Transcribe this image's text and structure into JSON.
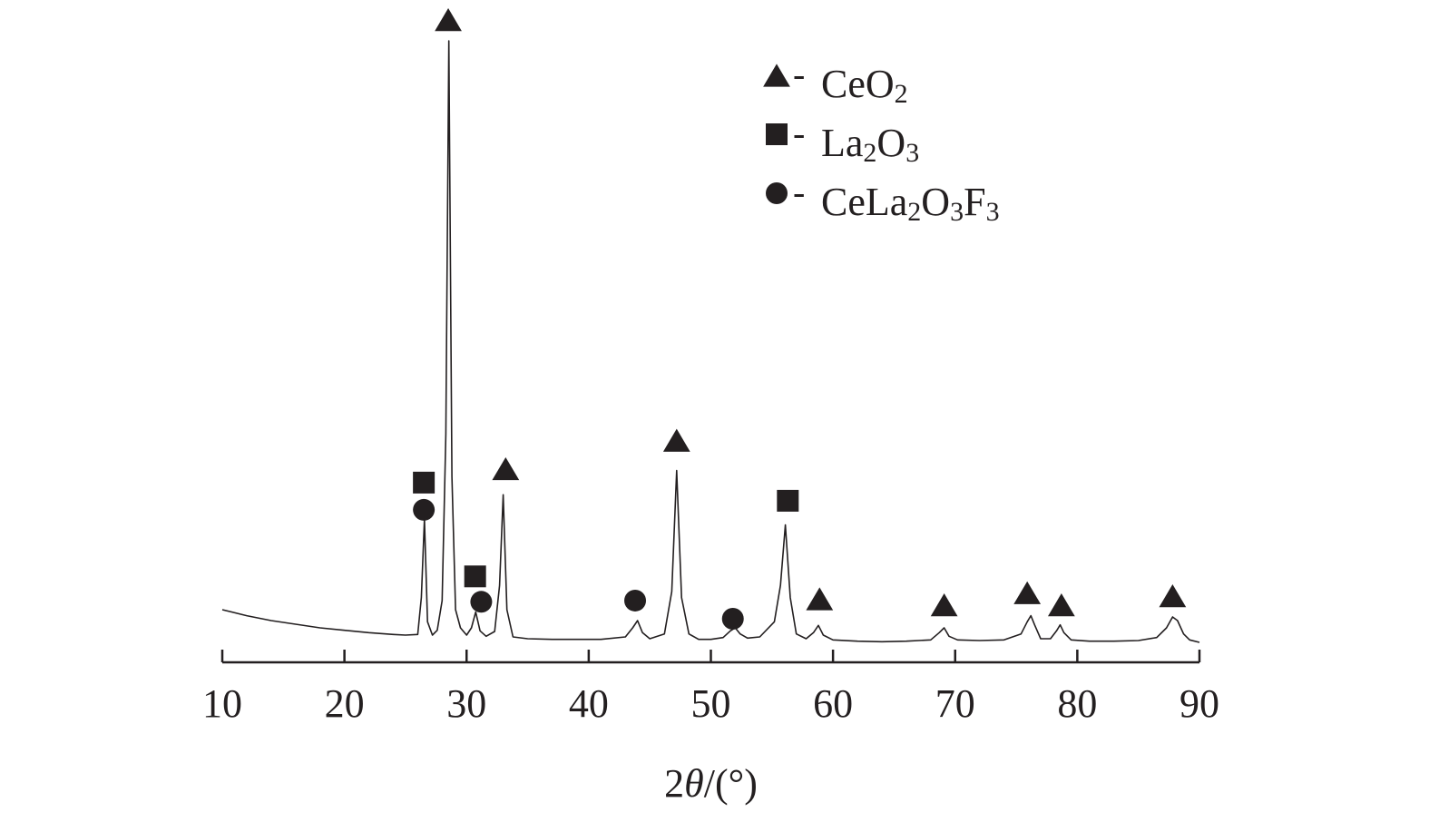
{
  "chart_data": {
    "type": "line",
    "xlabel_parts": [
      {
        "text": "2",
        "italic": false
      },
      {
        "text": "θ",
        "italic": true
      },
      {
        "text": "/(°)",
        "italic": false
      }
    ],
    "xlim": [
      10,
      90
    ],
    "xticks": [
      10,
      20,
      30,
      40,
      50,
      60,
      70,
      80,
      90
    ],
    "xtick_labels": [
      "10",
      "20",
      "30",
      "40",
      "50",
      "60",
      "70",
      "80",
      "90"
    ],
    "y_axis_shown": false,
    "ylim": [
      0,
      100
    ],
    "grid": false,
    "legend_position": "top-right",
    "series": [
      {
        "color": "#231f20",
        "x": [
          10.0,
          12.0,
          14.0,
          16.0,
          18.0,
          20.0,
          22.0,
          24.0,
          25.0,
          26.0,
          26.3,
          26.55,
          26.8,
          27.2,
          27.6,
          28.0,
          28.3,
          28.55,
          28.8,
          29.1,
          29.5,
          30.0,
          30.4,
          30.75,
          31.1,
          31.6,
          32.3,
          32.7,
          33.0,
          33.3,
          33.8,
          35.0,
          37.0,
          39.0,
          41.0,
          43.0,
          43.6,
          44.0,
          44.4,
          45.0,
          46.2,
          46.8,
          47.2,
          47.6,
          48.2,
          49.0,
          50.0,
          51.0,
          51.6,
          52.0,
          52.4,
          53.0,
          54.0,
          55.2,
          55.7,
          56.1,
          56.5,
          57.0,
          57.8,
          58.4,
          58.8,
          59.2,
          60.0,
          62.0,
          64.0,
          66.0,
          68.0,
          68.7,
          69.1,
          69.5,
          70.2,
          72.0,
          74.0,
          75.4,
          75.9,
          76.2,
          76.5,
          77.0,
          77.8,
          78.3,
          78.6,
          78.9,
          79.5,
          81.0,
          83.0,
          85.0,
          86.5,
          87.3,
          87.8,
          88.2,
          88.7,
          89.2,
          90.0
        ],
        "y": [
          6.0,
          5.0,
          4.2,
          3.6,
          3.0,
          2.6,
          2.2,
          1.9,
          1.8,
          1.9,
          8.0,
          21.0,
          4.0,
          1.8,
          2.6,
          7.5,
          35.0,
          100.0,
          28.0,
          6.0,
          3.0,
          1.8,
          3.0,
          5.6,
          2.5,
          1.6,
          2.4,
          10.0,
          25.0,
          6.0,
          1.5,
          1.2,
          1.1,
          1.1,
          1.1,
          1.5,
          3.0,
          4.2,
          2.2,
          1.2,
          2.0,
          9.0,
          29.0,
          8.0,
          2.0,
          1.1,
          1.1,
          1.4,
          2.5,
          3.0,
          2.0,
          1.3,
          1.5,
          4.0,
          10.0,
          20.0,
          8.0,
          2.0,
          1.2,
          2.2,
          3.4,
          1.8,
          1.0,
          0.8,
          0.7,
          0.8,
          1.0,
          2.2,
          3.0,
          1.6,
          1.0,
          0.9,
          1.0,
          2.0,
          4.0,
          5.0,
          3.5,
          1.2,
          1.2,
          2.5,
          3.5,
          2.2,
          1.0,
          0.8,
          0.8,
          0.9,
          1.4,
          3.0,
          4.8,
          4.2,
          2.0,
          1.0,
          0.6
        ]
      }
    ],
    "markers": [
      {
        "phase": "CeO2",
        "shape": "triangle",
        "x": 28.5,
        "y": 103.5
      },
      {
        "phase": "La2O3",
        "shape": "square",
        "x": 26.5,
        "y": 27.0
      },
      {
        "phase": "CeLa2O3F3",
        "shape": "circle",
        "x": 26.5,
        "y": 22.5
      },
      {
        "phase": "La2O3",
        "shape": "square",
        "x": 30.7,
        "y": 11.5
      },
      {
        "phase": "CeLa2O3F3",
        "shape": "circle",
        "x": 31.2,
        "y": 7.3
      },
      {
        "phase": "CeO2",
        "shape": "triangle",
        "x": 33.2,
        "y": 29.3
      },
      {
        "phase": "CeLa2O3F3",
        "shape": "circle",
        "x": 43.8,
        "y": 7.5
      },
      {
        "phase": "CeO2",
        "shape": "triangle",
        "x": 47.2,
        "y": 34.0
      },
      {
        "phase": "CeLa2O3F3",
        "shape": "circle",
        "x": 51.8,
        "y": 4.5
      },
      {
        "phase": "La2O3",
        "shape": "square",
        "x": 56.3,
        "y": 24.0
      },
      {
        "phase": "CeO2",
        "shape": "triangle",
        "x": 58.9,
        "y": 7.8
      },
      {
        "phase": "CeO2",
        "shape": "triangle",
        "x": 69.1,
        "y": 6.8
      },
      {
        "phase": "CeO2",
        "shape": "triangle",
        "x": 75.9,
        "y": 8.8
      },
      {
        "phase": "CeO2",
        "shape": "triangle",
        "x": 78.7,
        "y": 6.8
      },
      {
        "phase": "CeO2",
        "shape": "triangle",
        "x": 87.8,
        "y": 8.3
      }
    ],
    "legend": [
      {
        "shape": "triangle",
        "dash": "-",
        "parts": [
          {
            "text": "CeO",
            "sub": false
          },
          {
            "text": "2",
            "sub": true
          }
        ]
      },
      {
        "shape": "square",
        "dash": "-",
        "parts": [
          {
            "text": "La",
            "sub": false
          },
          {
            "text": "2",
            "sub": true
          },
          {
            "text": "O",
            "sub": false
          },
          {
            "text": "3",
            "sub": true
          }
        ]
      },
      {
        "shape": "circle",
        "dash": "-",
        "parts": [
          {
            "text": "CeLa",
            "sub": false
          },
          {
            "text": "2",
            "sub": true
          },
          {
            "text": "O",
            "sub": false
          },
          {
            "text": "3",
            "sub": true
          },
          {
            "text": "F",
            "sub": false
          },
          {
            "text": "3",
            "sub": true
          }
        ]
      }
    ]
  }
}
